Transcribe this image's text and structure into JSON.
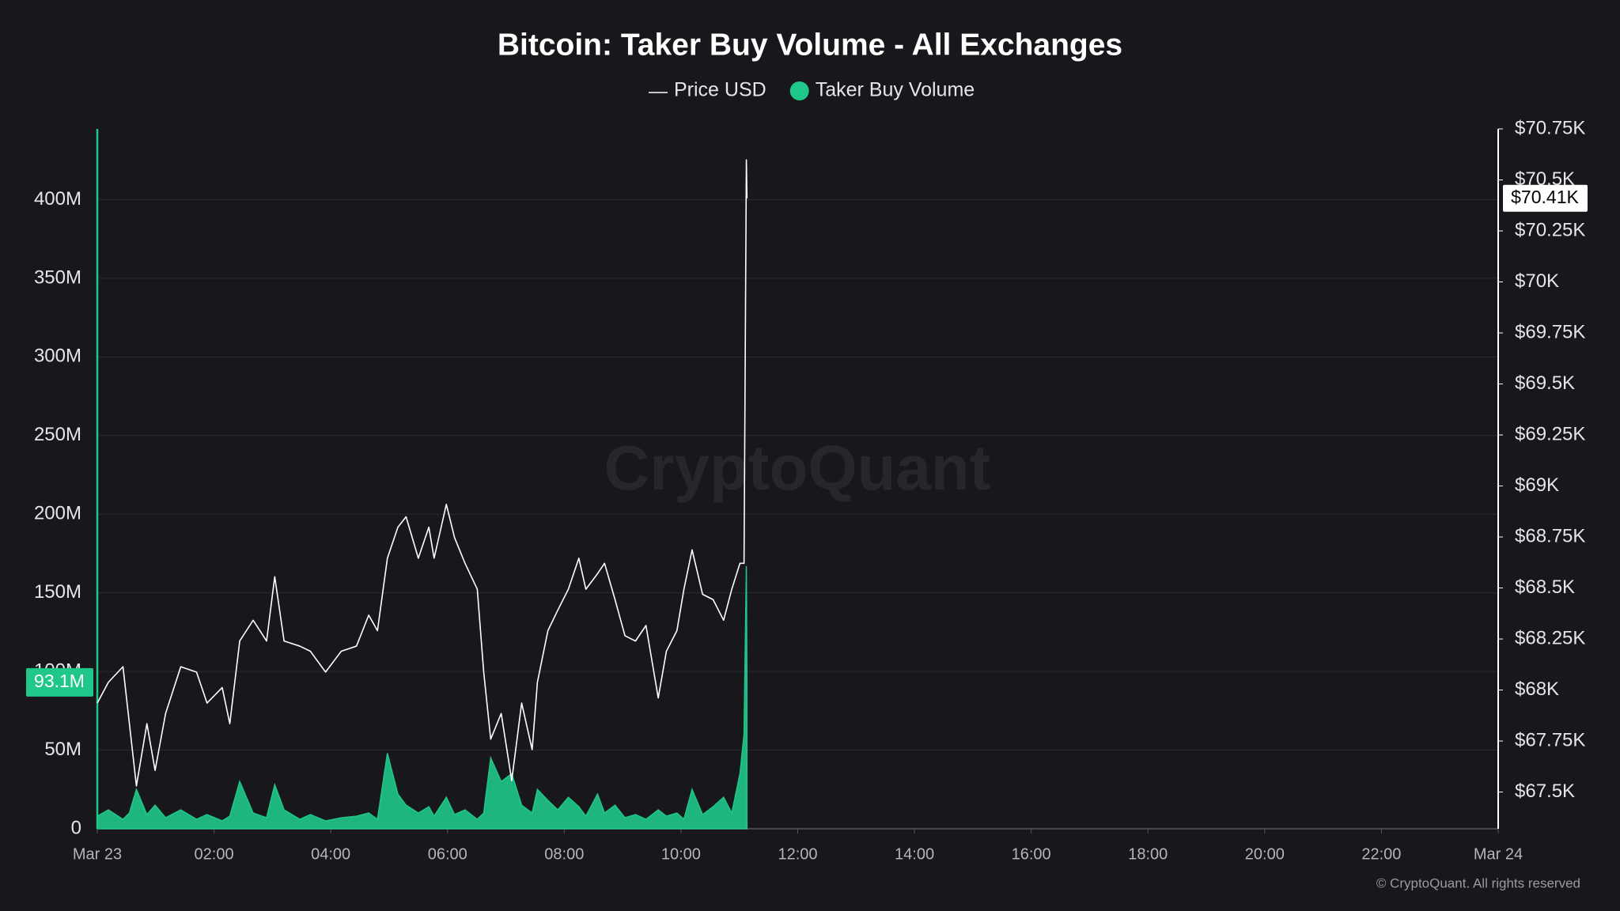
{
  "chart_data": {
    "type": "line",
    "title": "Bitcoin: Taker Buy Volume - All Exchanges",
    "watermark": "CryptoQuant",
    "footer": "© CryptoQuant. All rights reserved",
    "x": [
      0,
      0.19,
      0.44,
      0.55,
      0.67,
      0.85,
      0.99,
      1.17,
      1.43,
      1.7,
      1.88,
      2.14,
      2.27,
      2.44,
      2.67,
      2.9,
      3.04,
      3.2,
      3.47,
      3.65,
      3.91,
      4.18,
      4.44,
      4.65,
      4.8,
      4.97,
      5.15,
      5.29,
      5.5,
      5.68,
      5.77,
      5.98,
      6.12,
      6.3,
      6.51,
      6.62,
      6.74,
      6.92,
      7.1,
      7.27,
      7.45,
      7.54,
      7.72,
      7.89,
      8.07,
      8.25,
      8.37,
      8.57,
      8.69,
      8.87,
      9.04,
      9.22,
      9.4,
      9.61,
      9.75,
      9.93,
      10.05,
      10.19,
      10.37,
      10.55,
      10.73,
      10.87,
      11.01,
      11.08,
      11.12,
      11.13
    ],
    "xlim": [
      0,
      24
    ],
    "xticks": [
      {
        "value": 0,
        "label": "Mar 23"
      },
      {
        "value": 2,
        "label": "02:00"
      },
      {
        "value": 4,
        "label": "04:00"
      },
      {
        "value": 6,
        "label": "06:00"
      },
      {
        "value": 8,
        "label": "08:00"
      },
      {
        "value": 10,
        "label": "10:00"
      },
      {
        "value": 12,
        "label": "12:00"
      },
      {
        "value": 14,
        "label": "14:00"
      },
      {
        "value": 16,
        "label": "16:00"
      },
      {
        "value": 18,
        "label": "18:00"
      },
      {
        "value": 20,
        "label": "20:00"
      },
      {
        "value": 22,
        "label": "22:00"
      },
      {
        "value": 24,
        "label": "Mar 24"
      }
    ],
    "ylim": [
      0,
      445000000
    ],
    "yticks": [
      0,
      {
        "value": 50000000,
        "label": "50M"
      },
      {
        "value": 100000000,
        "label": "100M"
      },
      {
        "value": 150000000,
        "label": "150M"
      },
      {
        "value": 200000000,
        "label": "200M"
      },
      {
        "value": 250000000,
        "label": "250M"
      },
      {
        "value": 300000000,
        "label": "300M"
      },
      {
        "value": 350000000,
        "label": "350M"
      },
      {
        "value": 400000000,
        "label": "400M"
      }
    ],
    "y2lim": [
      67320,
      70750
    ],
    "y2ticks": [
      {
        "value": 67500,
        "label": "$67.5K"
      },
      {
        "value": 67750,
        "label": "$67.75K"
      },
      {
        "value": 68000,
        "label": "$68K"
      },
      {
        "value": 68250,
        "label": "$68.25K"
      },
      {
        "value": 68500,
        "label": "$68.5K"
      },
      {
        "value": 68750,
        "label": "$68.75K"
      },
      {
        "value": 69000,
        "label": "$69K"
      },
      {
        "value": 69250,
        "label": "$69.25K"
      },
      {
        "value": 69500,
        "label": "$69.5K"
      },
      {
        "value": 69750,
        "label": "$69.75K"
      },
      {
        "value": 70000,
        "label": "$70K"
      },
      {
        "value": 70250,
        "label": "$70.25K"
      },
      {
        "value": 70500,
        "label": "$70.5K"
      },
      {
        "value": 70750,
        "label": "$70.75K"
      }
    ],
    "grid": true,
    "legend": "top",
    "series": [
      {
        "name": "Price USD",
        "color": "#ffffff",
        "axis": "y2",
        "values": [
          67936,
          68038,
          68114,
          67835,
          67530,
          67835,
          67606,
          67885,
          68114,
          68088,
          67936,
          68012,
          67835,
          68240,
          68342,
          68240,
          68555,
          68240,
          68215,
          68190,
          68088,
          68190,
          68215,
          68367,
          68291,
          68646,
          68798,
          68849,
          68646,
          68798,
          68646,
          68910,
          68747,
          68621,
          68494,
          68088,
          67759,
          67885,
          67556,
          67936,
          67708,
          68038,
          68291,
          68392,
          68494,
          68646,
          68494,
          68570,
          68621,
          68443,
          68266,
          68240,
          68316,
          67961,
          68190,
          68291,
          68494,
          68687,
          68469,
          68443,
          68342,
          68494,
          68621,
          68621,
          70598,
          70410
        ],
        "value_labels": [
          null,
          null,
          null,
          null,
          null,
          null,
          null,
          null,
          null,
          null,
          null,
          null,
          null,
          null,
          null,
          null,
          null,
          null,
          null,
          null,
          null,
          null,
          null,
          null,
          null,
          null,
          null,
          null,
          null,
          null,
          null,
          null,
          null,
          null,
          null,
          null,
          null,
          null,
          null,
          null,
          null,
          null,
          null,
          null,
          null,
          null,
          null,
          null,
          null,
          null,
          null,
          null,
          null,
          null,
          null,
          null,
          null,
          null,
          null,
          null,
          null,
          null,
          null,
          null,
          null,
          "$70.41K"
        ]
      },
      {
        "name": "Taker Buy Volume",
        "color": "#1fc88a",
        "axis": "y",
        "values": [
          8000000,
          12000000,
          6000000,
          10000000,
          25000000,
          9000000,
          15000000,
          7000000,
          12000000,
          6000000,
          9000000,
          5000000,
          8000000,
          30000000,
          10000000,
          7000000,
          28000000,
          12000000,
          6000000,
          9000000,
          5000000,
          7000000,
          8000000,
          10000000,
          6000000,
          48000000,
          22000000,
          15000000,
          10000000,
          14000000,
          8000000,
          20000000,
          9000000,
          12000000,
          6000000,
          10000000,
          45000000,
          30000000,
          35000000,
          15000000,
          10000000,
          25000000,
          18000000,
          12000000,
          20000000,
          14000000,
          8000000,
          22000000,
          10000000,
          15000000,
          7000000,
          9000000,
          6000000,
          12000000,
          8000000,
          10000000,
          6000000,
          25000000,
          9000000,
          14000000,
          20000000,
          10000000,
          35000000,
          60000000,
          167000000,
          93100000
        ],
        "value_labels": [
          null,
          null,
          null,
          null,
          null,
          null,
          null,
          null,
          null,
          null,
          null,
          null,
          null,
          null,
          null,
          null,
          null,
          null,
          null,
          null,
          null,
          null,
          null,
          null,
          null,
          null,
          null,
          null,
          null,
          null,
          null,
          null,
          null,
          null,
          null,
          null,
          null,
          null,
          null,
          null,
          null,
          null,
          null,
          null,
          null,
          null,
          null,
          null,
          null,
          null,
          null,
          null,
          null,
          null,
          null,
          null,
          null,
          null,
          null,
          null,
          null,
          null,
          null,
          null,
          null,
          "93.1M"
        ]
      }
    ]
  }
}
